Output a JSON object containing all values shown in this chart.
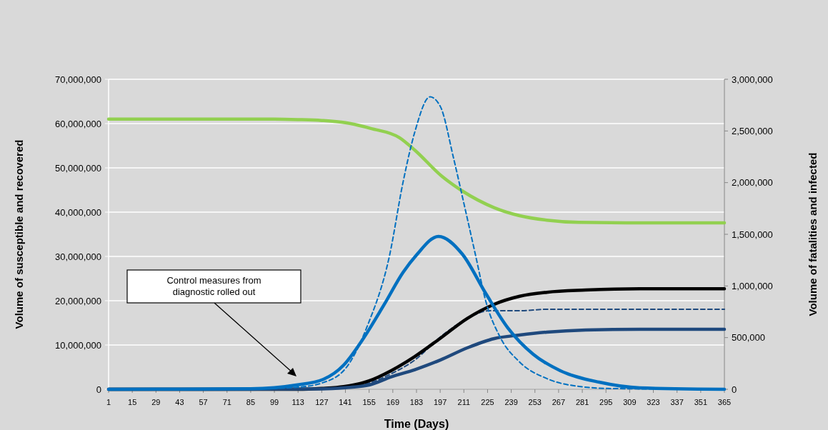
{
  "chart_data": {
    "type": "line",
    "xlabel": "Time (Days)",
    "ylabel": "Volume of susceptible  and recovered",
    "y2label": "Volume of fatalities and infected",
    "annotations": [
      "Control measures from diagnostic rolled out"
    ],
    "xlim": [
      1,
      365
    ],
    "xticks": [
      1,
      15,
      29,
      43,
      57,
      71,
      85,
      99,
      113,
      127,
      141,
      155,
      169,
      183,
      197,
      211,
      225,
      239,
      253,
      267,
      281,
      295,
      309,
      323,
      337,
      351,
      365
    ],
    "ylim": [
      0,
      70000000
    ],
    "yticks": [
      {
        "value": 0,
        "label": "0"
      },
      {
        "value": 10000000,
        "label": "10,000,000"
      },
      {
        "value": 20000000,
        "label": "20,000,000"
      },
      {
        "value": 30000000,
        "label": "30,000,000"
      },
      {
        "value": 40000000,
        "label": "40,000,000"
      },
      {
        "value": 50000000,
        "label": "50,000,000"
      },
      {
        "value": 60000000,
        "label": "60,000,000"
      },
      {
        "value": 70000000,
        "label": "70,000,000"
      }
    ],
    "y2lim": [
      0,
      3000000
    ],
    "y2ticks": [
      {
        "value": 0,
        "label": "0"
      },
      {
        "value": 500000,
        "label": "500,000"
      },
      {
        "value": 1000000,
        "label": "1,000,000"
      },
      {
        "value": 1500000,
        "label": "1,500,000"
      },
      {
        "value": 2000000,
        "label": "2,000,000"
      },
      {
        "value": 2500000,
        "label": "2,500,000"
      },
      {
        "value": 3000000,
        "label": "3,000,000"
      }
    ],
    "grid": "y",
    "marker": "none",
    "series": [
      {
        "color": "#92d050",
        "line_style": "solid",
        "x": [
          1,
          99,
          113,
          127,
          141,
          156,
          173,
          182,
          198,
          210,
          229,
          244,
          260,
          279,
          307,
          365
        ],
        "values": [
          61000000,
          61000000,
          60900000,
          60700000,
          60200000,
          58900000,
          56800000,
          54000000,
          48100000,
          44800000,
          41000000,
          39200000,
          38200000,
          37700000,
          37600000,
          37600000
        ]
      },
      {
        "color": "#1f497d",
        "line_style": "dashed",
        "axis": "y2",
        "x": [
          1,
          127,
          141,
          155,
          168,
          182,
          197,
          213,
          226,
          244,
          260,
          365
        ],
        "values": [
          0,
          3000,
          20000,
          60000,
          150000,
          283000,
          505000,
          684000,
          760000,
          760000,
          774000,
          774000
        ]
      },
      {
        "color": "#000000",
        "line_style": "solid",
        "x": [
          1,
          113,
          127,
          140,
          155,
          168,
          182,
          197,
          213,
          229,
          244,
          260,
          283,
          315,
          365
        ],
        "values": [
          0,
          0,
          200000,
          600000,
          1900000,
          4200000,
          7400000,
          11500000,
          16000000,
          19200000,
          21000000,
          21900000,
          22400000,
          22700000,
          22700000
        ]
      },
      {
        "color": "#1f497d",
        "line_style": "solid",
        "axis": "y2",
        "x": [
          1,
          127,
          141,
          155,
          168,
          182,
          197,
          213,
          229,
          244,
          260,
          283,
          315,
          365
        ],
        "values": [
          0,
          3000,
          15000,
          41000,
          120000,
          190000,
          283000,
          401000,
          491000,
          525000,
          553000,
          574000,
          581000,
          581000
        ]
      },
      {
        "color": "#0070c0",
        "line_style": "dashed",
        "axis": "y2",
        "x": [
          1,
          99,
          113,
          127,
          141,
          154,
          167,
          175,
          182,
          191,
          197,
          205,
          211,
          218,
          224,
          232,
          244,
          260,
          279,
          299,
          365
        ],
        "values": [
          0,
          10000,
          20000,
          60000,
          200000,
          615000,
          1290000,
          2000000,
          2490000,
          2830000,
          2740000,
          2230000,
          1800000,
          1290000,
          850000,
          518000,
          263000,
          104000,
          28000,
          7000,
          0
        ]
      },
      {
        "color": "#0070c0",
        "line_style": "solid",
        "axis": "y2",
        "x": [
          1,
          85,
          99,
          112,
          128,
          140,
          151,
          164,
          175,
          183,
          196,
          210,
          224,
          237,
          252,
          268,
          291,
          315,
          365
        ],
        "values": [
          0,
          5000,
          15000,
          41000,
          97000,
          235000,
          477000,
          823000,
          1130000,
          1300000,
          1480000,
          1310000,
          926000,
          594000,
          339000,
          180000,
          69000,
          14000,
          0
        ]
      }
    ]
  }
}
